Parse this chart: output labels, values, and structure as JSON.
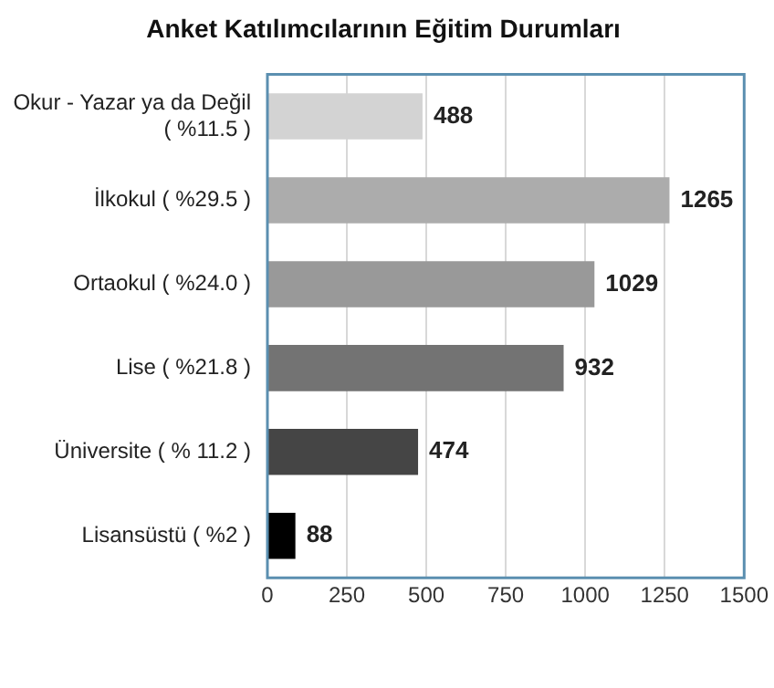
{
  "chart_data": {
    "type": "bar",
    "orientation": "horizontal",
    "title": "Anket Katılımcılarının Eğitim Durumları",
    "categories": [
      "Okur - Yazar ya da Değil\n( %11.5 )",
      "İlkokul ( %29.5 )",
      "Ortaokul ( %24.0 )",
      "Lise ( %21.8 )",
      "Üniversite ( % 11.2 )",
      "Lisansüstü ( %2 )"
    ],
    "values": [
      488,
      1265,
      1029,
      932,
      474,
      88
    ],
    "colors": [
      "#d3d3d3",
      "#acacac",
      "#999999",
      "#737373",
      "#454545",
      "#000000"
    ],
    "xlim": [
      0,
      1500
    ],
    "xticks": [
      0,
      250,
      500,
      750,
      1000,
      1250,
      1500
    ],
    "grid": "x",
    "legend": false,
    "data_labels": true
  }
}
